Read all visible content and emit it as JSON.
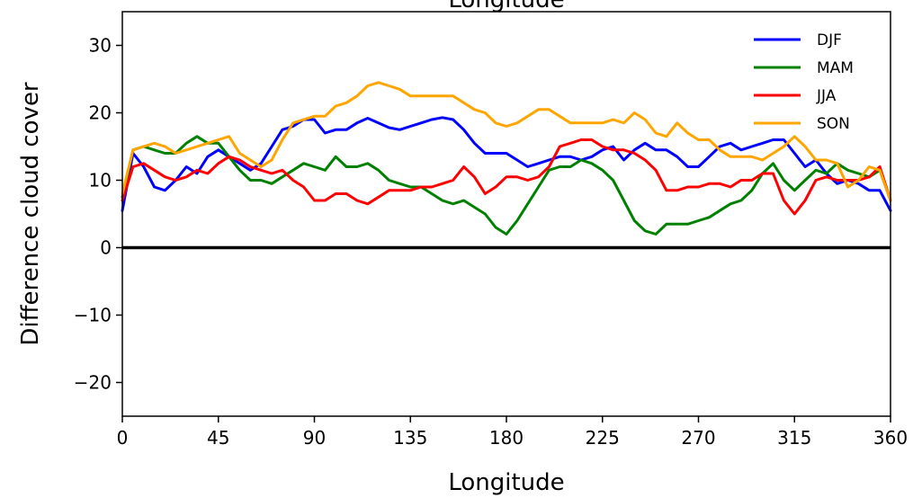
{
  "chart_data": {
    "type": "line",
    "title": "Longitude",
    "xlabel": "Longitude",
    "ylabel": "Difference cloud cover",
    "xlim": [
      0,
      360
    ],
    "ylim": [
      -25,
      35
    ],
    "xticks": [
      0,
      45,
      90,
      135,
      180,
      225,
      270,
      315,
      360
    ],
    "yticks": [
      -20,
      -10,
      0,
      10,
      20,
      30
    ],
    "ytick_labels": [
      "−20",
      "−10",
      "0",
      "10",
      "20",
      "30"
    ],
    "grid": false,
    "legend_position": "top-right",
    "zero_line": true,
    "series": [
      {
        "name": "DJF",
        "color": "#0000ff",
        "x": [
          0,
          5,
          10,
          15,
          20,
          25,
          30,
          35,
          40,
          45,
          50,
          55,
          60,
          65,
          70,
          75,
          80,
          85,
          90,
          95,
          100,
          105,
          110,
          115,
          120,
          125,
          130,
          135,
          140,
          145,
          150,
          155,
          160,
          165,
          170,
          175,
          180,
          185,
          190,
          195,
          200,
          205,
          210,
          215,
          220,
          225,
          230,
          235,
          240,
          245,
          250,
          255,
          260,
          265,
          270,
          275,
          280,
          285,
          290,
          295,
          300,
          305,
          310,
          315,
          320,
          325,
          330,
          335,
          340,
          345,
          350,
          355,
          360
        ],
        "values": [
          5.5,
          14,
          12,
          9,
          8.5,
          10,
          12,
          11,
          13.5,
          14.5,
          13.5,
          12.5,
          11.5,
          12.5,
          15,
          17.5,
          18,
          19,
          19,
          17,
          17.5,
          17.5,
          18.5,
          19.2,
          18.5,
          17.8,
          17.5,
          18,
          18.5,
          19,
          19.3,
          19,
          17.5,
          15.5,
          14,
          14,
          14,
          13,
          12,
          12.5,
          13,
          13.5,
          13.5,
          13,
          13.5,
          14.5,
          15,
          13,
          14.5,
          15.5,
          14.5,
          14.5,
          13.5,
          12,
          12,
          13.5,
          15,
          15.5,
          14.5,
          15,
          15.5,
          16,
          16,
          14,
          12,
          13,
          11,
          9.5,
          10,
          9.5,
          8.5,
          8.5,
          5.5
        ]
      },
      {
        "name": "MAM",
        "color": "#008000",
        "x": [
          0,
          5,
          10,
          15,
          20,
          25,
          30,
          35,
          40,
          45,
          50,
          55,
          60,
          65,
          70,
          75,
          80,
          85,
          90,
          95,
          100,
          105,
          110,
          115,
          120,
          125,
          130,
          135,
          140,
          145,
          150,
          155,
          160,
          165,
          170,
          175,
          180,
          185,
          190,
          195,
          200,
          205,
          210,
          215,
          220,
          225,
          230,
          235,
          240,
          245,
          250,
          255,
          260,
          265,
          270,
          275,
          280,
          285,
          290,
          295,
          300,
          305,
          310,
          315,
          320,
          325,
          330,
          335,
          340,
          345,
          350,
          355,
          360
        ],
        "values": [
          7.5,
          14.5,
          15,
          14.5,
          14,
          14,
          15.5,
          16.5,
          15.5,
          15.5,
          13.5,
          11.5,
          10,
          10,
          9.5,
          10.5,
          11.5,
          12.5,
          12,
          11.5,
          13.5,
          12,
          12,
          12.5,
          11.5,
          10,
          9.5,
          9,
          9,
          8,
          7,
          6.5,
          7,
          6,
          5,
          3,
          2,
          4,
          6.5,
          9,
          11.5,
          12,
          12,
          13,
          12.5,
          11.5,
          10,
          7,
          4,
          2.5,
          2,
          3.5,
          3.5,
          3.5,
          4,
          4.5,
          5.5,
          6.5,
          7,
          8.5,
          11,
          12.5,
          10,
          8.5,
          10,
          11.5,
          11,
          12.5,
          11.5,
          11,
          10.5,
          11.5,
          7
        ]
      },
      {
        "name": "JJA",
        "color": "#ff0000",
        "x": [
          0,
          5,
          10,
          15,
          20,
          25,
          30,
          35,
          40,
          45,
          50,
          55,
          60,
          65,
          70,
          75,
          80,
          85,
          90,
          95,
          100,
          105,
          110,
          115,
          120,
          125,
          130,
          135,
          140,
          145,
          150,
          155,
          160,
          165,
          170,
          175,
          180,
          185,
          190,
          195,
          200,
          205,
          210,
          215,
          220,
          225,
          230,
          235,
          240,
          245,
          250,
          255,
          260,
          265,
          270,
          275,
          280,
          285,
          290,
          295,
          300,
          305,
          310,
          315,
          320,
          325,
          330,
          335,
          340,
          345,
          350,
          355,
          360
        ],
        "values": [
          7,
          12,
          12.5,
          11.5,
          10.5,
          10,
          10.5,
          11.5,
          11,
          12.5,
          13.5,
          13,
          12,
          11.5,
          11,
          11.5,
          10,
          9,
          7,
          7,
          8,
          8,
          7,
          6.5,
          7.5,
          8.5,
          8.5,
          8.5,
          9,
          9,
          9.5,
          10,
          12,
          10.5,
          8,
          9,
          10.5,
          10.5,
          10,
          10.5,
          12,
          15,
          15.5,
          16,
          16,
          15,
          14.5,
          14.5,
          14,
          13,
          11.5,
          8.5,
          8.5,
          9,
          9,
          9.5,
          9.5,
          9,
          10,
          10,
          11,
          11,
          7,
          5,
          7,
          10,
          10.5,
          10,
          10,
          10,
          10.5,
          12,
          7
        ]
      },
      {
        "name": "SON",
        "color": "#ffa500",
        "x": [
          0,
          5,
          10,
          15,
          20,
          25,
          30,
          35,
          40,
          45,
          50,
          55,
          60,
          65,
          70,
          75,
          80,
          85,
          90,
          95,
          100,
          105,
          110,
          115,
          120,
          125,
          130,
          135,
          140,
          145,
          150,
          155,
          160,
          165,
          170,
          175,
          180,
          185,
          190,
          195,
          200,
          205,
          210,
          215,
          220,
          225,
          230,
          235,
          240,
          245,
          250,
          255,
          260,
          265,
          270,
          275,
          280,
          285,
          290,
          295,
          300,
          305,
          310,
          315,
          320,
          325,
          330,
          335,
          340,
          345,
          350,
          355,
          360
        ],
        "values": [
          8,
          14.5,
          15,
          15.5,
          15,
          14,
          14.5,
          15,
          15.5,
          16,
          16.5,
          14,
          13,
          12,
          13,
          16,
          18.5,
          19,
          19.5,
          19.5,
          21,
          21.5,
          22.5,
          24,
          24.5,
          24,
          23.5,
          22.5,
          22.5,
          22.5,
          22.5,
          22.5,
          21.5,
          20.5,
          20,
          18.5,
          18,
          18.5,
          19.5,
          20.5,
          20.5,
          19.5,
          18.5,
          18.5,
          18.5,
          18.5,
          19,
          18.5,
          20,
          19,
          17,
          16.5,
          18.5,
          17,
          16,
          16,
          14.5,
          13.5,
          13.5,
          13.5,
          13,
          14,
          15,
          16.5,
          15,
          13,
          13,
          12.5,
          9,
          10,
          12,
          11.5,
          7
        ]
      }
    ]
  }
}
